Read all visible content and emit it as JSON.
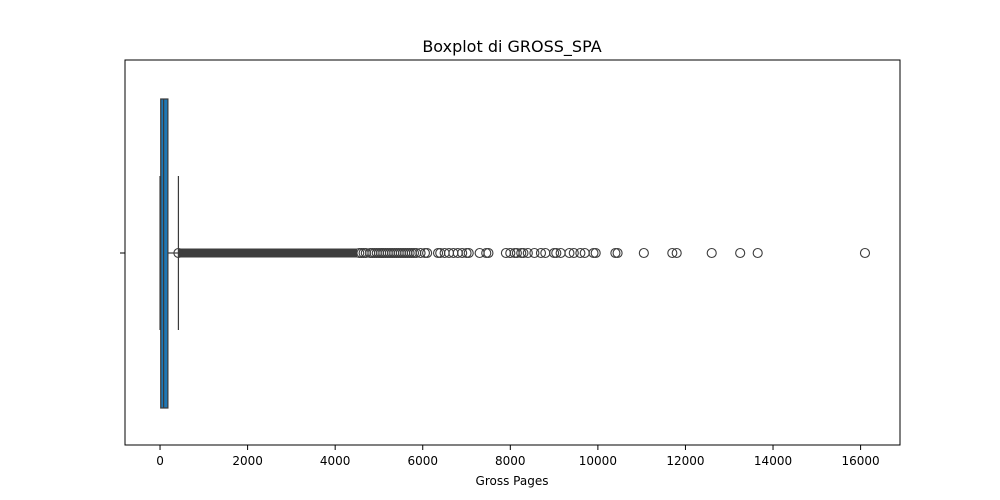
{
  "chart_data": {
    "type": "boxplot",
    "orientation": "horizontal",
    "title": "Boxplot di GROSS_SPA",
    "xlabel": "Gross Pages",
    "ylabel": "",
    "xlim": [
      -800,
      16900
    ],
    "xticks": [
      0,
      2000,
      4000,
      6000,
      8000,
      10000,
      12000,
      14000,
      16000
    ],
    "box": {
      "min": 0,
      "q1": 16,
      "median": 82,
      "q3": 180,
      "whisker_low": 0,
      "whisker_high": 420,
      "color": "#1f77b4",
      "edge_color": "#3b3b3b"
    },
    "outliers": {
      "dense_range": [
        420,
        4500
      ],
      "values": [
        4550,
        4600,
        4650,
        4700,
        4800,
        4850,
        4900,
        4950,
        5000,
        5050,
        5100,
        5150,
        5200,
        5250,
        5300,
        5350,
        5400,
        5450,
        5500,
        5550,
        5600,
        5650,
        5700,
        5750,
        5800,
        5850,
        5950,
        6050,
        6100,
        6350,
        6400,
        6500,
        6600,
        6700,
        6800,
        6900,
        7000,
        7050,
        7300,
        7450,
        7500,
        7900,
        8000,
        8100,
        8150,
        8250,
        8300,
        8400,
        8550,
        8700,
        8800,
        9000,
        9050,
        9150,
        9350,
        9450,
        9600,
        9700,
        9900,
        9950,
        10400,
        10450,
        11050,
        11700,
        11800,
        12600,
        13250,
        13650,
        16100
      ]
    }
  }
}
